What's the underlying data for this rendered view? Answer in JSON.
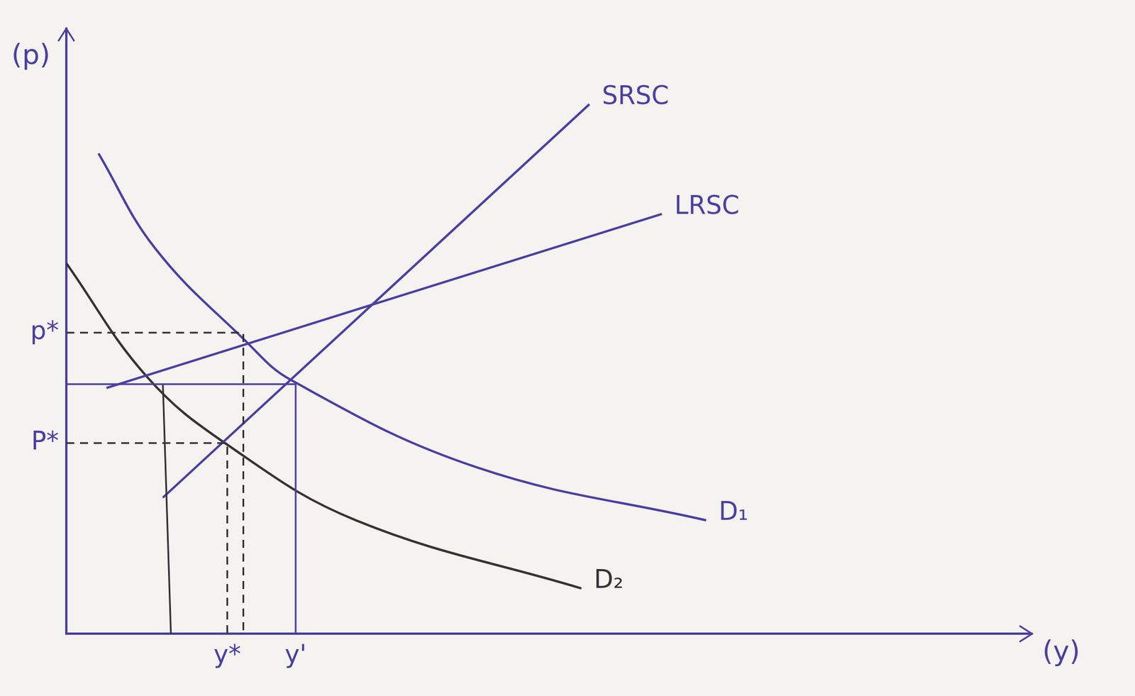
{
  "chart_data": {
    "type": "line",
    "x_label": "(y)",
    "y_label": "(p)",
    "xlim": [
      0,
      12
    ],
    "ylim": [
      0,
      8
    ],
    "xticks": [
      {
        "value": 2.0,
        "label": "y*"
      },
      {
        "value": 2.85,
        "label": "y'"
      }
    ],
    "yticks": [
      {
        "value": 2.52,
        "label": "P*"
      },
      {
        "value": 3.98,
        "label": "p*"
      }
    ],
    "grid": false,
    "series": [
      {
        "name": "SRSC",
        "color": "#4a3fa0",
        "x": [
          1.2,
          6.5
        ],
        "values": [
          1.8,
          7.0
        ]
      },
      {
        "name": "LRSC",
        "color": "#4a3fa0",
        "x": [
          0.5,
          7.4
        ],
        "values": [
          3.25,
          5.55
        ]
      },
      {
        "name": "D₁",
        "color": "#4a3fa0",
        "x": [
          0.4,
          1.1,
          2.2,
          2.8,
          5.1,
          7.95
        ],
        "values": [
          6.35,
          5.1,
          3.9,
          3.35,
          2.2,
          1.5
        ]
      },
      {
        "name": "D₂",
        "color": "#333333",
        "x": [
          0.0,
          1.0,
          2.0,
          3.6,
          6.4
        ],
        "values": [
          4.9,
          3.4,
          2.5,
          1.5,
          0.6
        ]
      }
    ],
    "guides": [
      {
        "color": "#333333",
        "line_style": "dashed",
        "x": [
          0,
          2.2,
          2.2
        ],
        "values": [
          3.98,
          3.98,
          0
        ]
      },
      {
        "color": "#333333",
        "line_style": "dashed",
        "x": [
          0,
          2.0,
          2.0
        ],
        "values": [
          2.52,
          2.52,
          0
        ]
      },
      {
        "color": "#4a3fa0",
        "line_style": "solid",
        "x": [
          0,
          2.85,
          2.85
        ],
        "values": [
          3.3,
          3.3,
          0
        ]
      },
      {
        "color": "#333333",
        "line_style": "solid",
        "x": [
          1.2,
          1.3
        ],
        "values": [
          3.3,
          0
        ]
      }
    ]
  }
}
